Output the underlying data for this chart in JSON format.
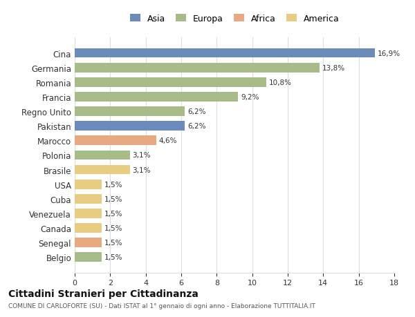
{
  "countries": [
    "Cina",
    "Germania",
    "Romania",
    "Francia",
    "Regno Unito",
    "Pakistan",
    "Marocco",
    "Polonia",
    "Brasile",
    "USA",
    "Cuba",
    "Venezuela",
    "Canada",
    "Senegal",
    "Belgio"
  ],
  "values": [
    16.9,
    13.8,
    10.8,
    9.2,
    6.2,
    6.2,
    4.6,
    3.1,
    3.1,
    1.5,
    1.5,
    1.5,
    1.5,
    1.5,
    1.5
  ],
  "labels": [
    "16,9%",
    "13,8%",
    "10,8%",
    "9,2%",
    "6,2%",
    "6,2%",
    "4,6%",
    "3,1%",
    "3,1%",
    "1,5%",
    "1,5%",
    "1,5%",
    "1,5%",
    "1,5%",
    "1,5%"
  ],
  "continents": [
    "Asia",
    "Europa",
    "Europa",
    "Europa",
    "Europa",
    "Asia",
    "Africa",
    "Europa",
    "America",
    "America",
    "America",
    "America",
    "America",
    "Africa",
    "Europa"
  ],
  "continent_colors": {
    "Asia": "#6b8cba",
    "Europa": "#a8bc8a",
    "Africa": "#e8a882",
    "America": "#e8cc82"
  },
  "legend_order": [
    "Asia",
    "Europa",
    "Africa",
    "America"
  ],
  "title": "Cittadini Stranieri per Cittadinanza",
  "subtitle": "COMUNE DI CARLOFORTE (SU) - Dati ISTAT al 1° gennaio di ogni anno - Elaborazione TUTTITALIA.IT",
  "xlim": [
    0,
    18
  ],
  "xticks": [
    0,
    2,
    4,
    6,
    8,
    10,
    12,
    14,
    16,
    18
  ],
  "bg_color": "#ffffff",
  "grid_color": "#dddddd",
  "bar_height": 0.65
}
